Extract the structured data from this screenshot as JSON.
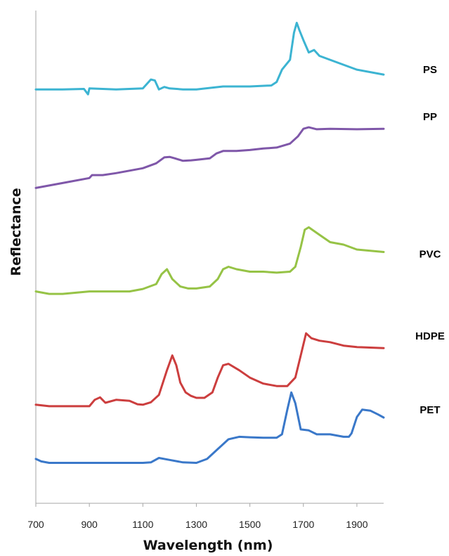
{
  "chart_data": {
    "type": "line",
    "xlabel": "Wavelength (nm)",
    "ylabel": "Reflectance",
    "xlim": [
      700,
      2000
    ],
    "x_ticks": [
      700,
      900,
      1100,
      1300,
      1500,
      1700,
      1900
    ],
    "grid": false,
    "legend": "labels at right end of each series",
    "y_tick_labels": false,
    "series": [
      {
        "name": "PS",
        "color": "#3CB4D2",
        "x": [
          700,
          800,
          880,
          895,
          900,
          1000,
          1100,
          1130,
          1145,
          1160,
          1180,
          1200,
          1250,
          1300,
          1400,
          1500,
          1580,
          1600,
          1620,
          1650,
          1665,
          1675,
          1685,
          1700,
          1720,
          1740,
          1760,
          1800,
          1900,
          2000
        ],
        "values": [
          0.16,
          0.16,
          0.159,
          0.17,
          0.158,
          0.16,
          0.158,
          0.14,
          0.142,
          0.16,
          0.155,
          0.158,
          0.16,
          0.16,
          0.154,
          0.154,
          0.152,
          0.145,
          0.12,
          0.1,
          0.045,
          0.025,
          0.04,
          0.06,
          0.085,
          0.08,
          0.092,
          0.1,
          0.12,
          0.13
        ]
      },
      {
        "name": "PP",
        "color": "#7F57A9",
        "x": [
          700,
          800,
          900,
          910,
          950,
          1000,
          1050,
          1100,
          1150,
          1180,
          1200,
          1220,
          1250,
          1280,
          1300,
          1350,
          1375,
          1400,
          1450,
          1500,
          1550,
          1600,
          1650,
          1680,
          1700,
          1720,
          1750,
          1800,
          1900,
          2000
        ],
        "values": [
          0.36,
          0.35,
          0.34,
          0.334,
          0.334,
          0.33,
          0.325,
          0.32,
          0.31,
          0.298,
          0.297,
          0.3,
          0.305,
          0.304,
          0.303,
          0.3,
          0.29,
          0.285,
          0.285,
          0.283,
          0.28,
          0.278,
          0.27,
          0.255,
          0.24,
          0.237,
          0.241,
          0.24,
          0.241,
          0.24
        ]
      },
      {
        "name": "PVC",
        "color": "#96C346",
        "x": [
          700,
          750,
          800,
          900,
          1000,
          1050,
          1100,
          1150,
          1170,
          1190,
          1210,
          1240,
          1270,
          1300,
          1350,
          1380,
          1400,
          1420,
          1450,
          1500,
          1550,
          1600,
          1650,
          1670,
          1690,
          1705,
          1720,
          1760,
          1800,
          1850,
          1900,
          2000
        ],
        "values": [
          0.57,
          0.575,
          0.575,
          0.57,
          0.57,
          0.57,
          0.565,
          0.555,
          0.535,
          0.525,
          0.545,
          0.56,
          0.564,
          0.564,
          0.56,
          0.545,
          0.525,
          0.52,
          0.525,
          0.53,
          0.53,
          0.532,
          0.53,
          0.52,
          0.48,
          0.445,
          0.44,
          0.455,
          0.47,
          0.475,
          0.485,
          0.49
        ]
      },
      {
        "name": "HDPE",
        "color": "#CC3E3E",
        "x": [
          700,
          750,
          800,
          900,
          920,
          940,
          960,
          1000,
          1050,
          1080,
          1100,
          1130,
          1160,
          1190,
          1210,
          1225,
          1240,
          1260,
          1280,
          1300,
          1330,
          1360,
          1380,
          1400,
          1420,
          1460,
          1500,
          1550,
          1600,
          1640,
          1670,
          1690,
          1710,
          1730,
          1760,
          1800,
          1850,
          1900,
          2000
        ],
        "values": [
          0.8,
          0.803,
          0.803,
          0.803,
          0.79,
          0.785,
          0.796,
          0.79,
          0.792,
          0.799,
          0.8,
          0.795,
          0.78,
          0.73,
          0.7,
          0.72,
          0.755,
          0.775,
          0.782,
          0.786,
          0.786,
          0.775,
          0.745,
          0.72,
          0.717,
          0.73,
          0.745,
          0.757,
          0.762,
          0.762,
          0.745,
          0.7,
          0.655,
          0.665,
          0.67,
          0.673,
          0.68,
          0.683,
          0.685
        ]
      },
      {
        "name": "PET",
        "color": "#3A78C9",
        "x": [
          700,
          720,
          750,
          800,
          900,
          1000,
          1100,
          1130,
          1160,
          1200,
          1250,
          1300,
          1340,
          1380,
          1420,
          1460,
          1500,
          1550,
          1600,
          1620,
          1640,
          1655,
          1670,
          1690,
          1720,
          1750,
          1800,
          1850,
          1870,
          1880,
          1900,
          1920,
          1950,
          1980,
          2000
        ],
        "values": [
          0.91,
          0.915,
          0.918,
          0.918,
          0.918,
          0.918,
          0.918,
          0.917,
          0.908,
          0.912,
          0.917,
          0.918,
          0.91,
          0.89,
          0.87,
          0.865,
          0.866,
          0.867,
          0.867,
          0.86,
          0.81,
          0.775,
          0.797,
          0.85,
          0.852,
          0.86,
          0.86,
          0.865,
          0.865,
          0.858,
          0.825,
          0.81,
          0.812,
          0.82,
          0.826
        ]
      }
    ]
  }
}
